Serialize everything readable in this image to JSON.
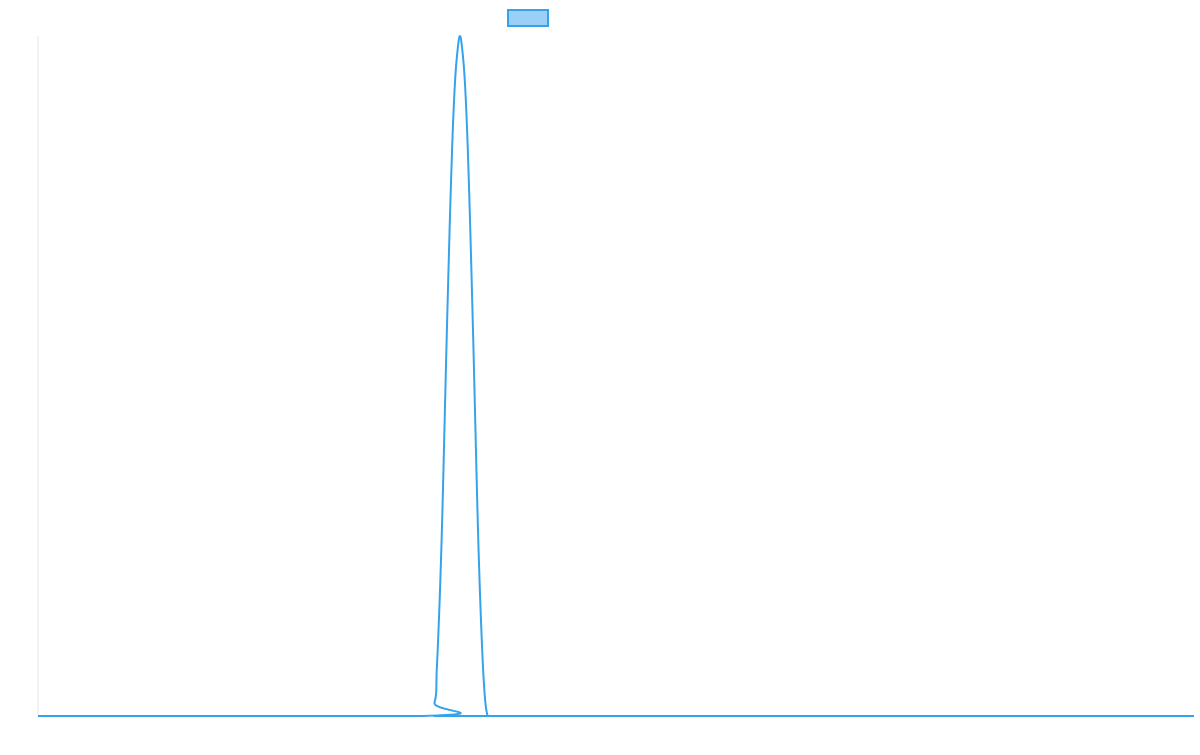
{
  "chart_data": {
    "type": "line",
    "title": "",
    "xlabel": "",
    "ylabel": "",
    "xlim": [
      0,
      1000
    ],
    "ylim": [
      0,
      1
    ],
    "grid": false,
    "legend": {
      "placement": "top-center",
      "entries": [
        {
          "label": "",
          "color": "#36a2eb",
          "fill": "rgba(54,162,235,0.5)"
        }
      ]
    },
    "series": [
      {
        "color": "#36a2eb",
        "x": [
          0,
          333,
          343,
          345,
          347,
          349,
          351,
          353,
          355,
          357,
          359,
          361,
          363,
          365,
          367,
          369,
          371,
          373,
          375,
          377,
          379,
          381,
          383,
          385,
          387,
          389,
          391,
          393,
          395,
          397,
          1000
        ],
        "y": [
          0,
          0,
          0.02,
          0.07,
          0.15,
          0.25,
          0.38,
          0.52,
          0.65,
          0.77,
          0.87,
          0.94,
          0.98,
          1.0,
          0.98,
          0.94,
          0.87,
          0.77,
          0.65,
          0.52,
          0.38,
          0.25,
          0.15,
          0.07,
          0.02,
          0.0,
          0,
          0,
          0,
          0,
          0
        ]
      }
    ]
  }
}
